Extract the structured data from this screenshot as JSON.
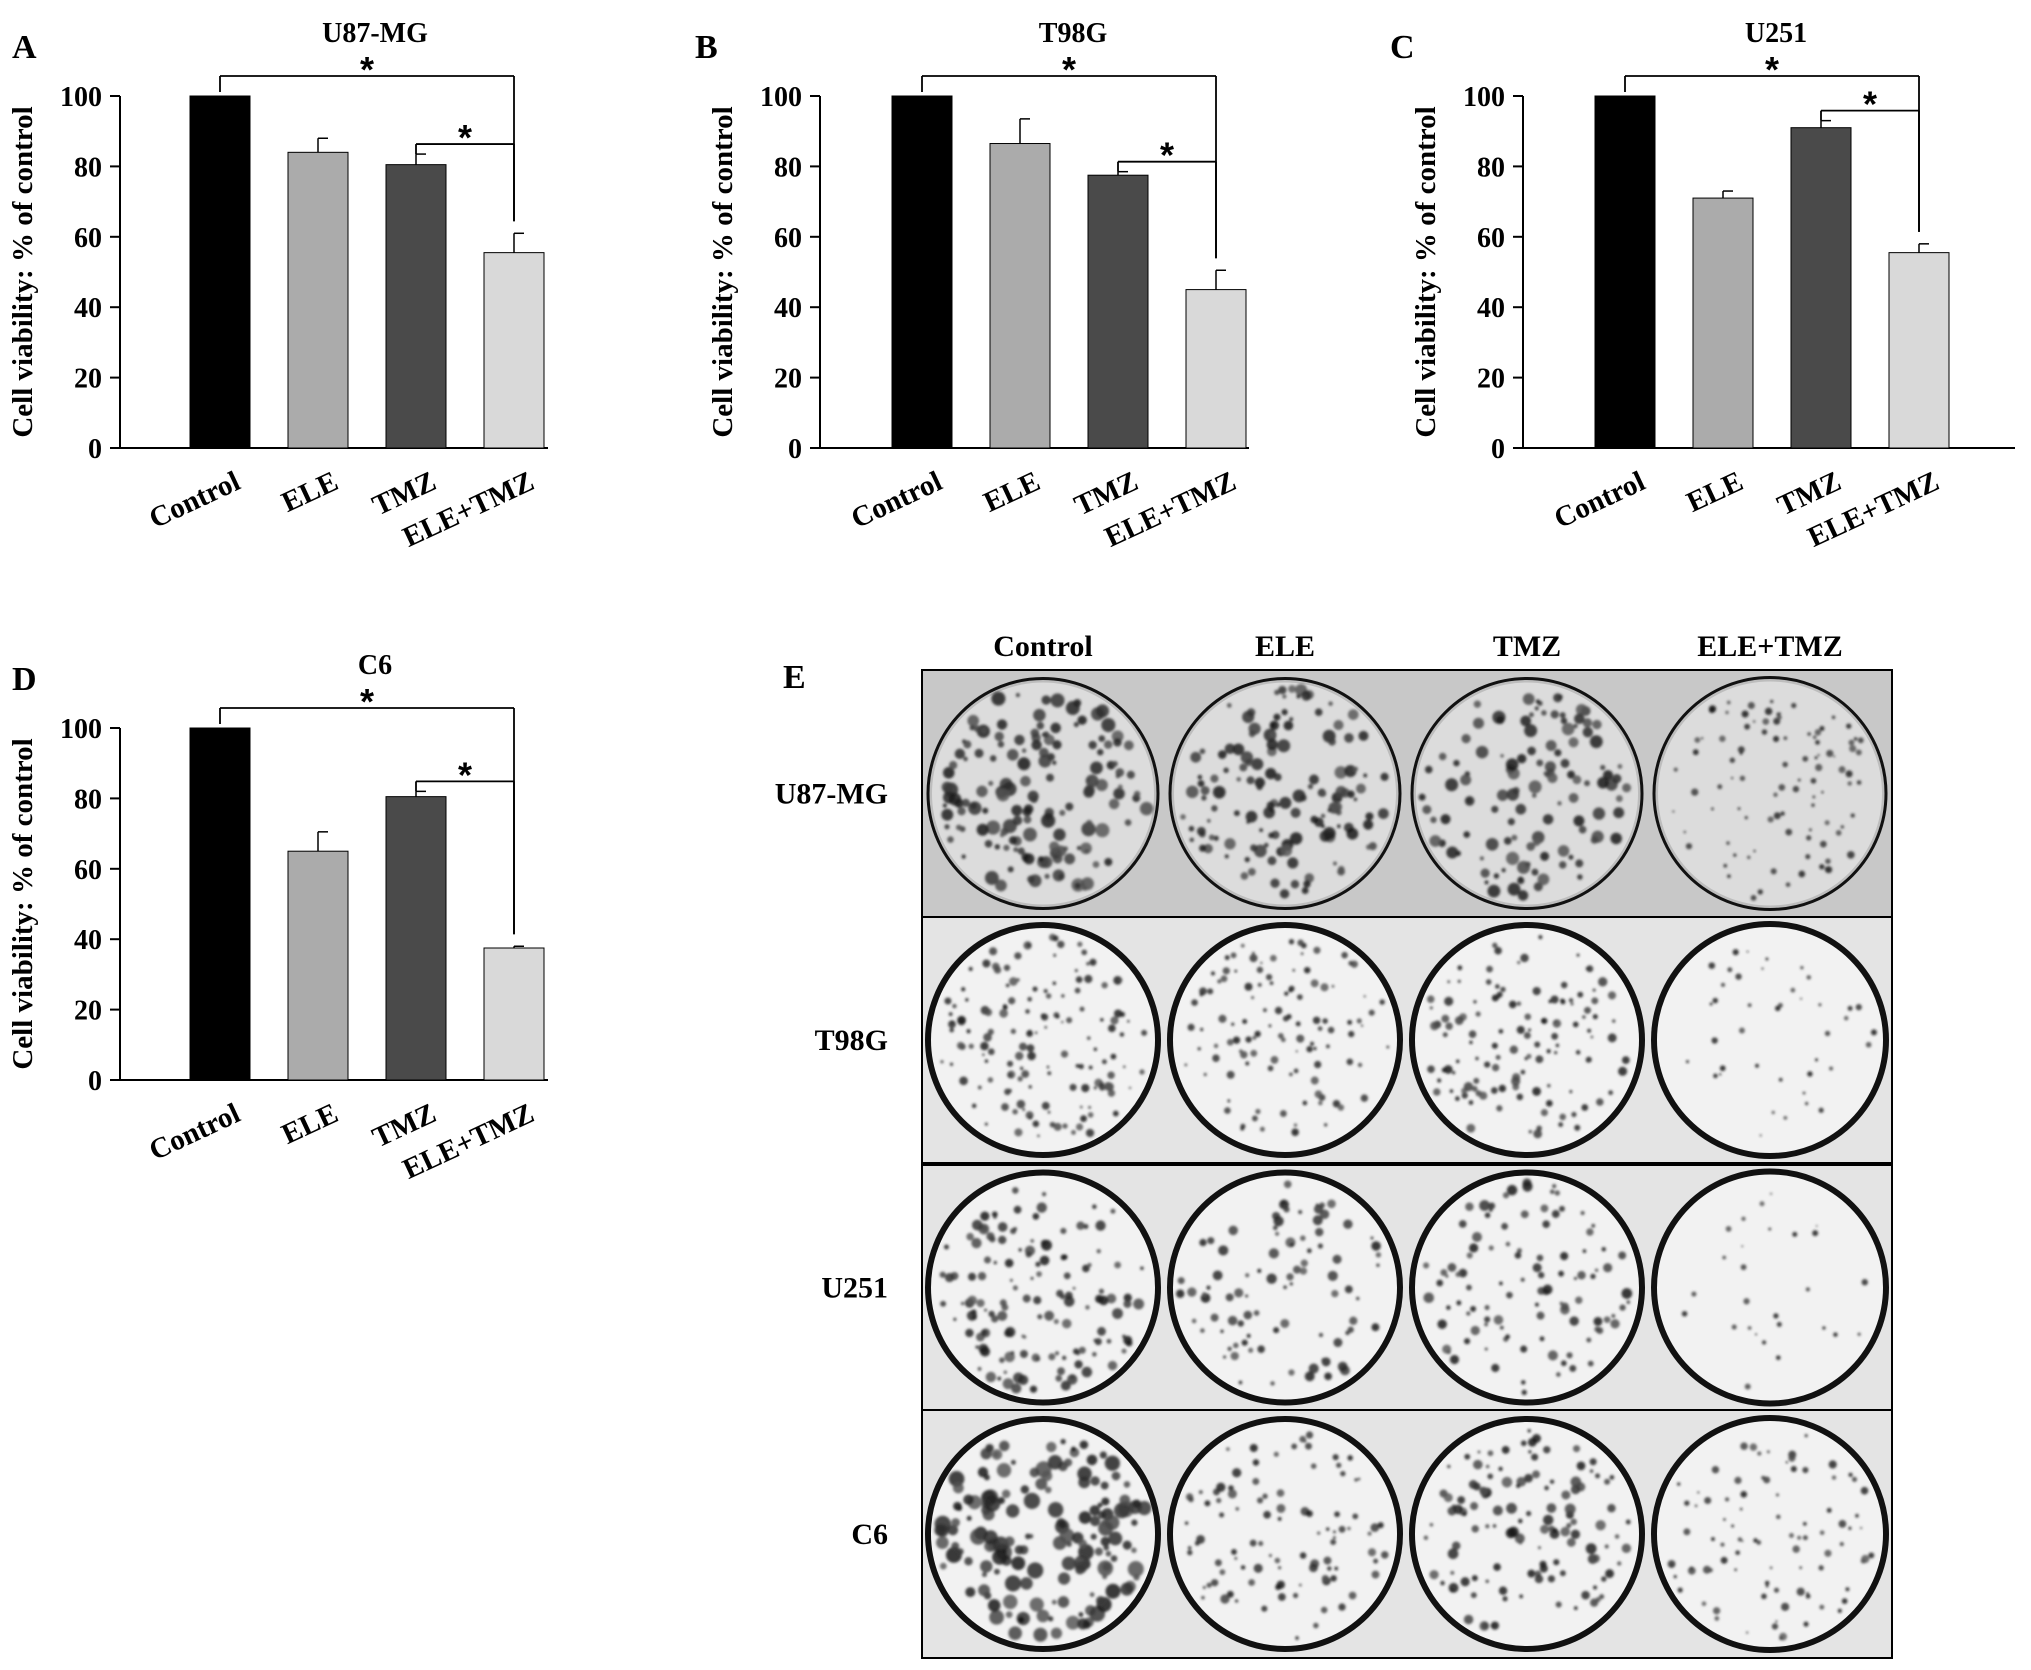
{
  "chart_data": [
    {
      "panel": "A",
      "type": "bar",
      "title": "U87-MG",
      "ylabel": "Cell viability: % of control",
      "ylim": [
        0,
        100
      ],
      "yticks": [
        0,
        20,
        40,
        60,
        80,
        100
      ],
      "categories": [
        "Control",
        "ELE",
        "TMZ",
        "ELE+TMZ"
      ],
      "values": [
        100,
        84,
        80.5,
        55.5
      ],
      "errors": [
        0,
        4,
        3,
        5.5
      ],
      "colors": [
        "#000000",
        "#ababab",
        "#4a4a4a",
        "#d9d9d9"
      ],
      "significance": [
        {
          "from": 0,
          "to": 3,
          "label": "*"
        },
        {
          "from": 2,
          "to": 3,
          "label": "*"
        }
      ]
    },
    {
      "panel": "B",
      "type": "bar",
      "title": "T98G",
      "ylabel": "Cell viability: % of control",
      "ylim": [
        0,
        100
      ],
      "yticks": [
        0,
        20,
        40,
        60,
        80,
        100
      ],
      "categories": [
        "Control",
        "ELE",
        "TMZ",
        "ELE+TMZ"
      ],
      "values": [
        100,
        86.5,
        77.5,
        45
      ],
      "errors": [
        0,
        7,
        1,
        5.5
      ],
      "colors": [
        "#000000",
        "#ababab",
        "#4a4a4a",
        "#d9d9d9"
      ],
      "significance": [
        {
          "from": 0,
          "to": 3,
          "label": "*"
        },
        {
          "from": 2,
          "to": 3,
          "label": "*"
        }
      ]
    },
    {
      "panel": "C",
      "type": "bar",
      "title": "U251",
      "ylabel": "Cell viability: % of control",
      "ylim": [
        0,
        100
      ],
      "yticks": [
        0,
        20,
        40,
        60,
        80,
        100
      ],
      "categories": [
        "Control",
        "ELE",
        "TMZ",
        "ELE+TMZ"
      ],
      "values": [
        100,
        71,
        91,
        55.5
      ],
      "errors": [
        0,
        2,
        2,
        2.5
      ],
      "colors": [
        "#000000",
        "#ababab",
        "#4a4a4a",
        "#d9d9d9"
      ],
      "significance": [
        {
          "from": 0,
          "to": 3,
          "label": "*"
        },
        {
          "from": 2,
          "to": 3,
          "label": "*"
        }
      ]
    },
    {
      "panel": "D",
      "type": "bar",
      "title": "C6",
      "ylabel": "Cell viability: % of control",
      "ylim": [
        0,
        100
      ],
      "yticks": [
        0,
        20,
        40,
        60,
        80,
        100
      ],
      "categories": [
        "Control",
        "ELE",
        "TMZ",
        "ELE+TMZ"
      ],
      "values": [
        100,
        65,
        80.5,
        37.5
      ],
      "errors": [
        0,
        5.5,
        1.5,
        0.5
      ],
      "colors": [
        "#000000",
        "#ababab",
        "#4a4a4a",
        "#d9d9d9"
      ],
      "significance": [
        {
          "from": 0,
          "to": 3,
          "label": "*"
        },
        {
          "from": 2,
          "to": 3,
          "label": "*"
        }
      ]
    }
  ],
  "colony_panel": {
    "panel": "E",
    "columns": [
      "Control",
      "ELE",
      "TMZ",
      "ELE+TMZ"
    ],
    "rows": [
      {
        "label": "U87-MG",
        "density": [
          0.95,
          0.85,
          0.7,
          0.55
        ],
        "blob_size": [
          1.3,
          1.2,
          1.2,
          0.7
        ]
      },
      {
        "label": "T98G",
        "density": [
          0.9,
          0.65,
          0.75,
          0.15
        ],
        "blob_size": [
          0.8,
          0.75,
          0.85,
          0.6
        ]
      },
      {
        "label": "U251",
        "density": [
          0.85,
          0.5,
          0.6,
          0.05
        ],
        "blob_size": [
          1.0,
          0.95,
          1.0,
          0.6
        ]
      },
      {
        "label": "C6",
        "density": [
          1.0,
          0.55,
          0.75,
          0.5
        ],
        "blob_size": [
          1.5,
          0.85,
          1.0,
          0.75
        ]
      }
    ]
  }
}
